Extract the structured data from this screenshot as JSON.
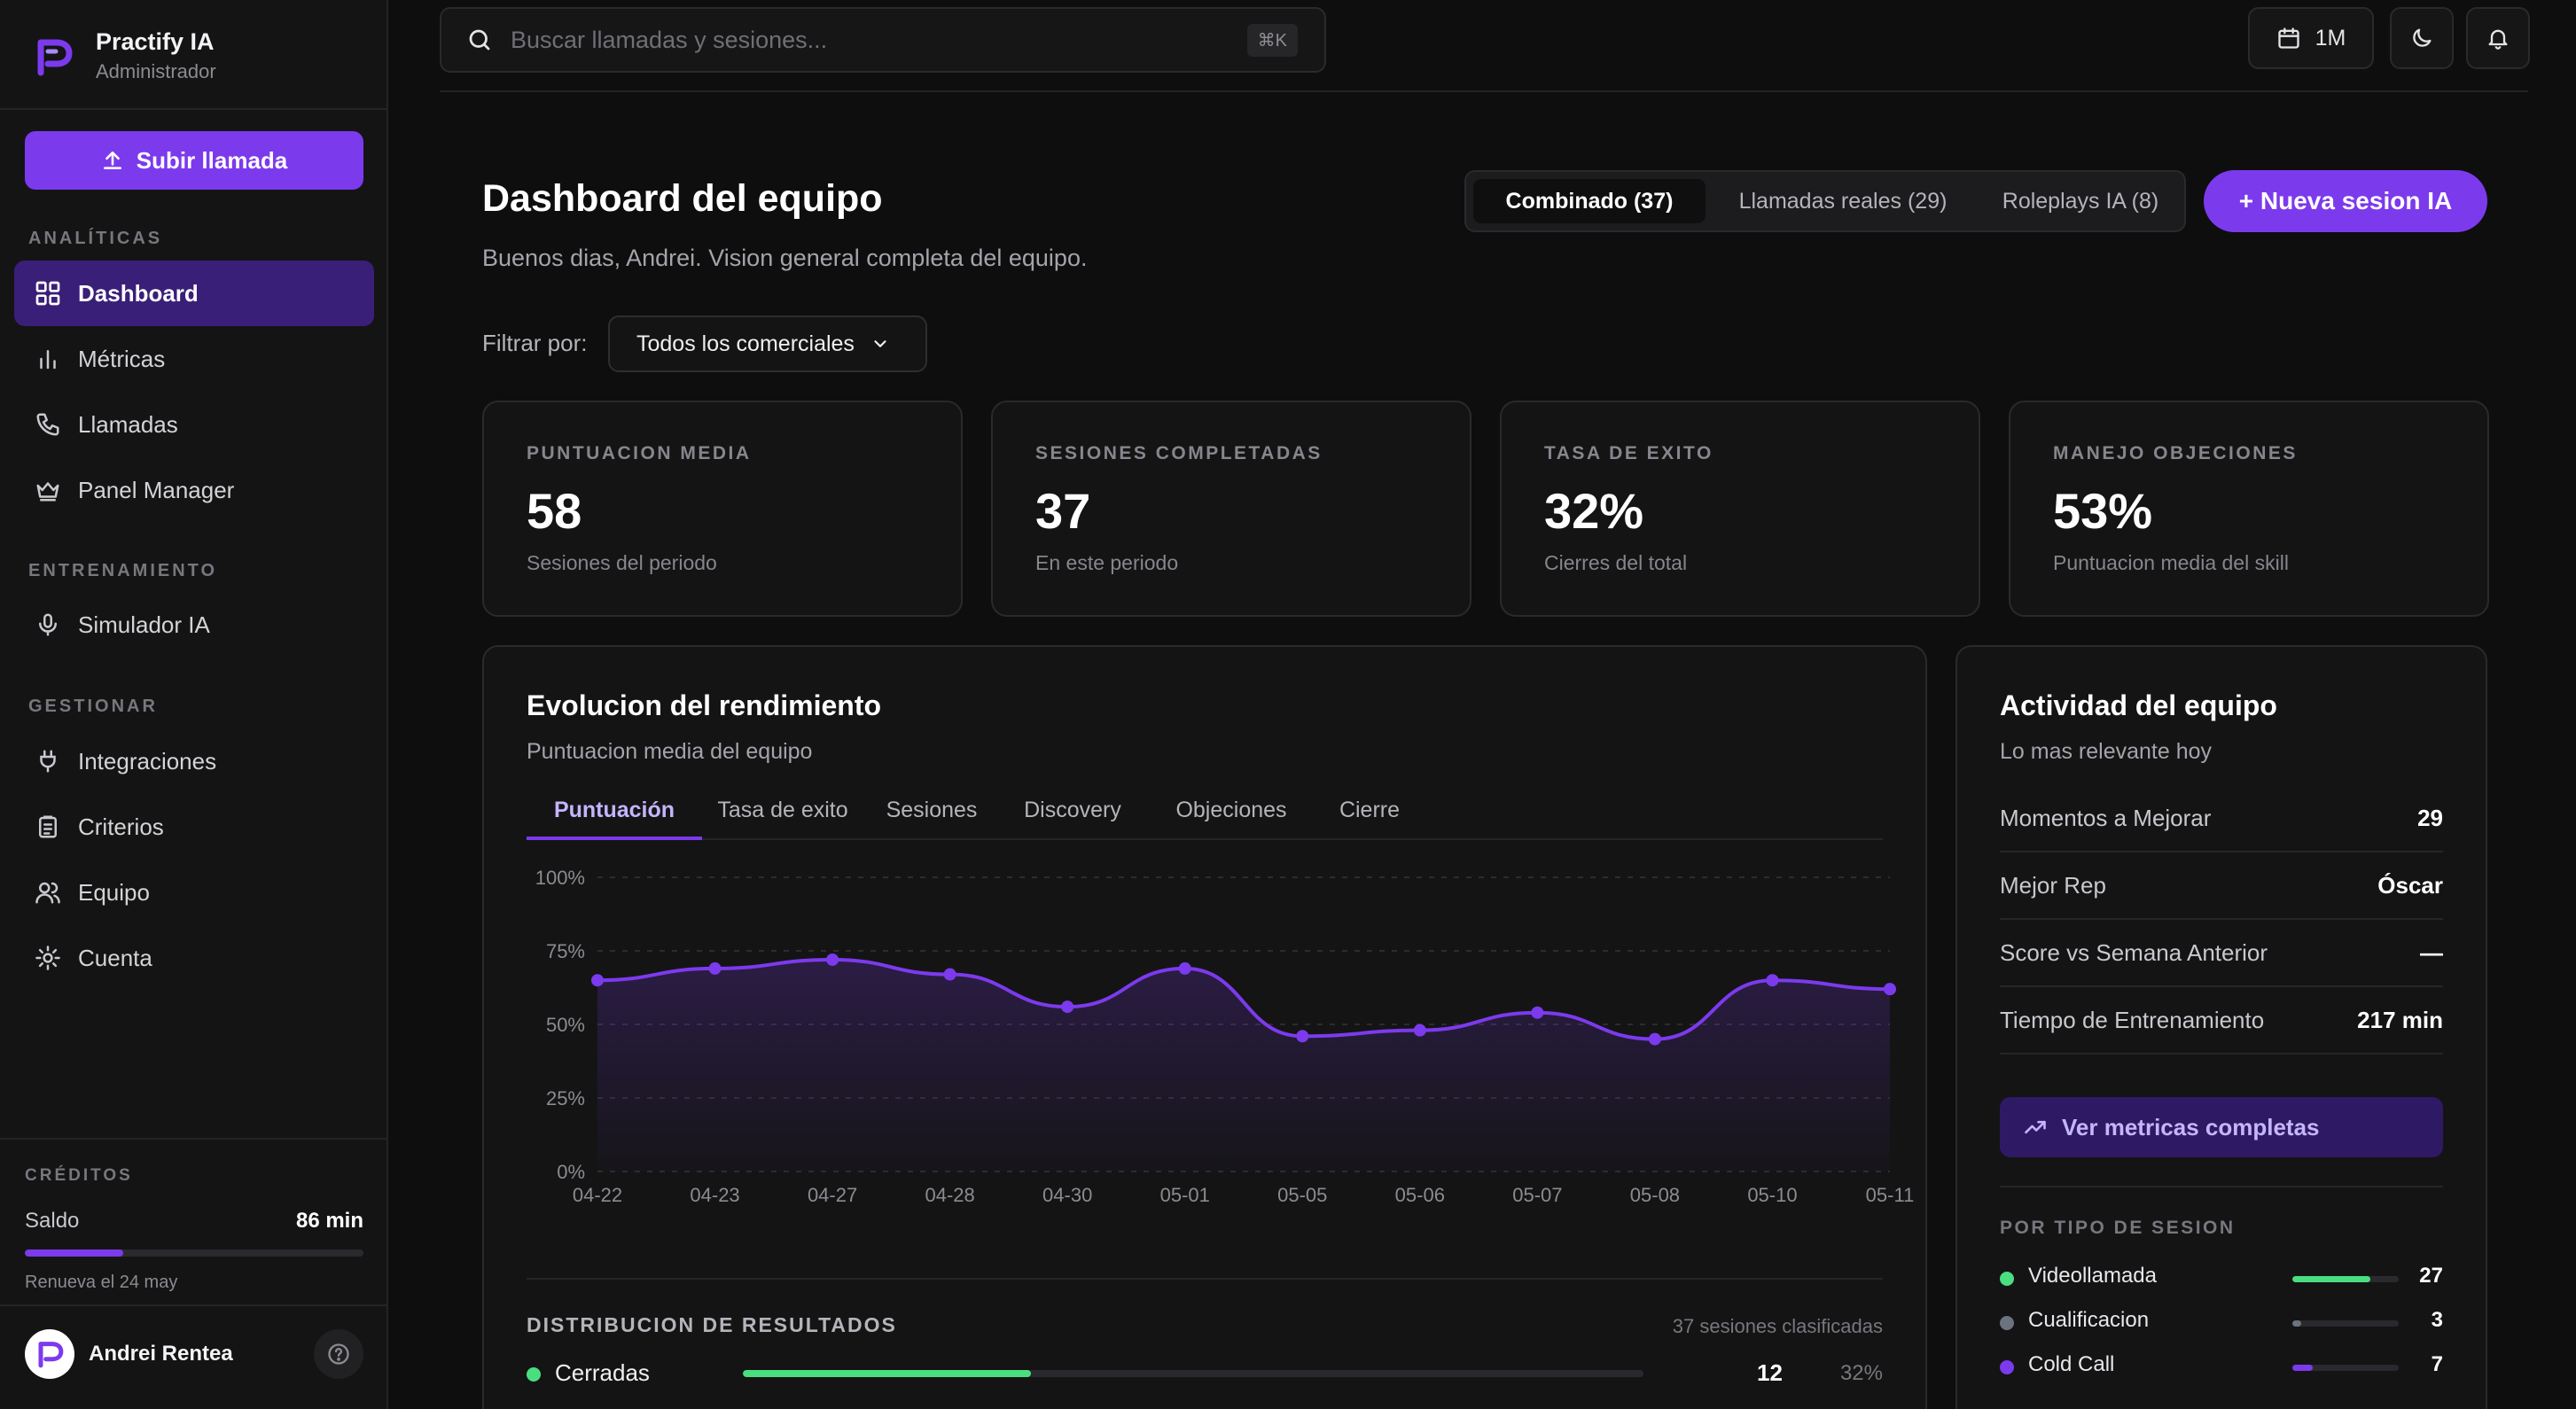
{
  "brand": {
    "name": "Practify IA",
    "role": "Administrador"
  },
  "sidebar": {
    "upload_label": "Subir llamada",
    "sections": {
      "analiticas": "ANALÍTICAS",
      "entrenamiento": "ENTRENAMIENTO",
      "gestionar": "GESTIONAR"
    },
    "items": [
      {
        "label": "Dashboard",
        "icon": "grid-icon",
        "active": true
      },
      {
        "label": "Métricas",
        "icon": "bar-chart-icon"
      },
      {
        "label": "Llamadas",
        "icon": "phone-icon"
      },
      {
        "label": "Panel Manager",
        "icon": "crown-icon"
      },
      {
        "label": "Simulador IA",
        "icon": "microphone-icon"
      },
      {
        "label": "Integraciones",
        "icon": "plug-icon"
      },
      {
        "label": "Criterios",
        "icon": "clipboard-icon"
      },
      {
        "label": "Equipo",
        "icon": "users-icon"
      },
      {
        "label": "Cuenta",
        "icon": "gear-icon"
      }
    ],
    "credits": {
      "label": "CRÉDITOS",
      "saldo_label": "Saldo",
      "saldo_value": "86 min",
      "saldo_fraction": 0.29,
      "renew_text": "Renueva el 24 may"
    },
    "user": {
      "name": "Andrei Rentea"
    }
  },
  "topbar": {
    "search_placeholder": "Buscar llamadas y sesiones...",
    "search_shortcut": "⌘K",
    "period_label": "1M"
  },
  "header": {
    "title": "Dashboard del equipo",
    "subtitle": "Buenos dias, Andrei. Vision general completa del equipo.",
    "segments": [
      "Combinado (37)",
      "Llamadas reales (29)",
      "Roleplays IA (8)"
    ],
    "active_segment": 0,
    "new_session_label": "+ Nueva sesion IA",
    "filter_label": "Filtrar por:",
    "filter_value": "Todos los comerciales"
  },
  "stats": [
    {
      "label": "PUNTUACION MEDIA",
      "value": "58",
      "sub": "Sesiones del periodo"
    },
    {
      "label": "SESIONES COMPLETADAS",
      "value": "37",
      "sub": "En este periodo"
    },
    {
      "label": "TASA DE EXITO",
      "value": "32%",
      "sub": "Cierres del total"
    },
    {
      "label": "MANEJO OBJECIONES",
      "value": "53%",
      "sub": "Puntuacion media del skill"
    }
  ],
  "performance": {
    "title": "Evolucion del rendimiento",
    "subtitle": "Puntuacion media del equipo",
    "tabs": [
      "Puntuación",
      "Tasa de exito",
      "Sesiones",
      "Discovery",
      "Objeciones",
      "Cierre"
    ],
    "active_tab": 0,
    "distribution": {
      "title": "DISTRIBUCION DE RESULTADOS",
      "meta": "37 sesiones clasificadas",
      "rows": [
        {
          "label": "Cerradas",
          "count": "12",
          "pct": "32%",
          "fraction": 0.32,
          "color": "#4ade80"
        }
      ]
    }
  },
  "chart_data": {
    "type": "area",
    "title": "",
    "xlabel": "",
    "ylabel": "",
    "categories": [
      "04-22",
      "04-23",
      "04-27",
      "04-28",
      "04-30",
      "05-01",
      "05-05",
      "05-06",
      "05-07",
      "05-08",
      "05-10",
      "05-11"
    ],
    "series": [
      {
        "values": [
          65,
          69,
          72,
          67,
          56,
          69,
          46,
          48,
          54,
          45,
          65,
          62
        ]
      }
    ],
    "ylim": [
      0,
      100
    ],
    "yticks": [
      "0%",
      "25%",
      "50%",
      "75%",
      "100%"
    ],
    "grid": true,
    "color": "#7c3aed"
  },
  "activity": {
    "title": "Actividad del equipo",
    "subtitle": "Lo mas relevante hoy",
    "rows": [
      {
        "label": "Momentos a Mejorar",
        "value": "29"
      },
      {
        "label": "Mejor Rep",
        "value": "Óscar"
      },
      {
        "label": "Score vs Semana Anterior",
        "value": "—"
      },
      {
        "label": "Tiempo de Entrenamiento",
        "value": "217 min"
      }
    ],
    "metrics_button": "Ver metricas completas",
    "types_label": "POR TIPO DE SESION",
    "types": [
      {
        "label": "Videollamada",
        "count": "27",
        "fraction": 0.73,
        "color": "#4ade80"
      },
      {
        "label": "Cualificacion",
        "count": "3",
        "fraction": 0.08,
        "color": "#6b7280"
      },
      {
        "label": "Cold Call",
        "count": "7",
        "fraction": 0.19,
        "color": "#7c3aed"
      }
    ]
  }
}
